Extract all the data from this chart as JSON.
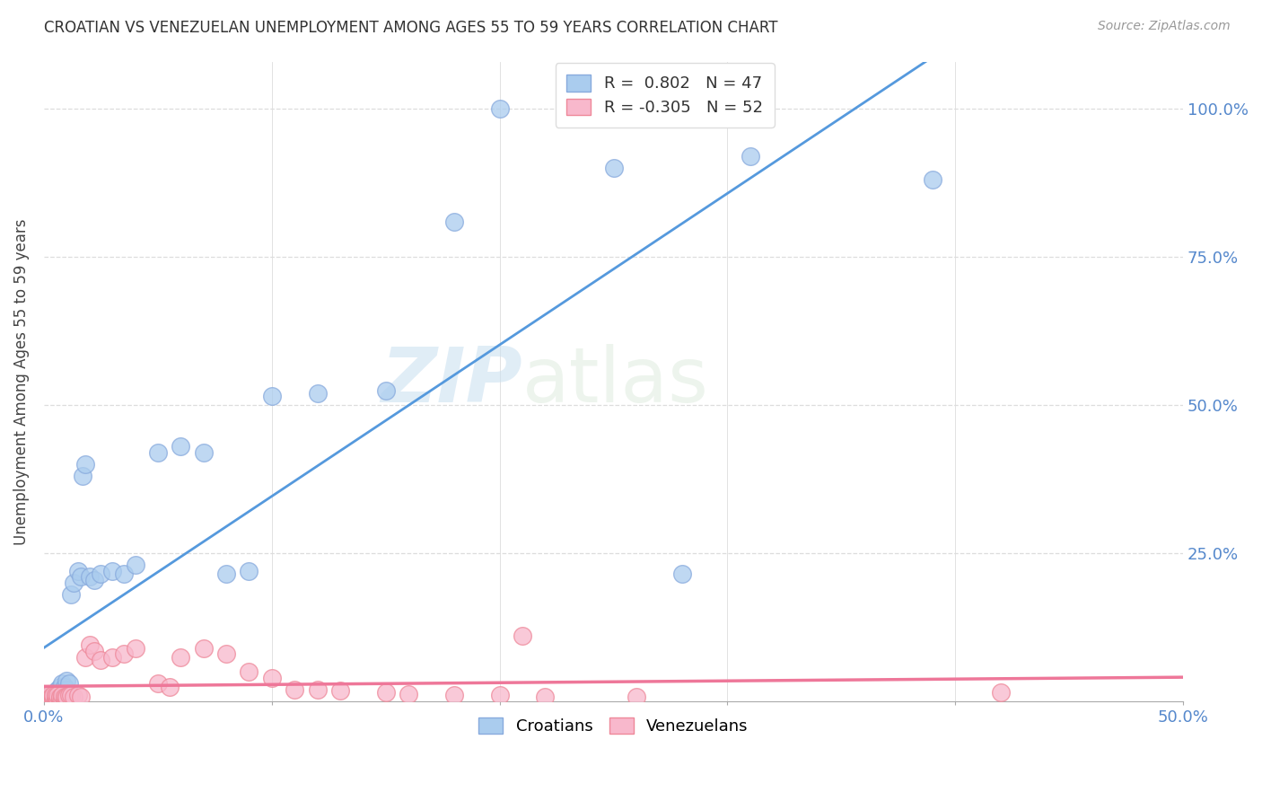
{
  "title": "CROATIAN VS VENEZUELAN UNEMPLOYMENT AMONG AGES 55 TO 59 YEARS CORRELATION CHART",
  "source": "Source: ZipAtlas.com",
  "ylabel": "Unemployment Among Ages 55 to 59 years",
  "xlim": [
    0.0,
    0.5
  ],
  "ylim": [
    0.0,
    1.08
  ],
  "croatian_color": "#aaccee",
  "venezuelan_color": "#f8b8cc",
  "croatian_edge_color": "#88aadd",
  "venezuelan_edge_color": "#ee8899",
  "croatian_line_color": "#5599dd",
  "venezuelan_line_color": "#ee7799",
  "legend_R_croatian": "0.802",
  "legend_N_croatian": "47",
  "legend_R_venezuelan": "-0.305",
  "legend_N_venezuelan": "52",
  "watermark_zip": "ZIP",
  "watermark_atlas": "atlas",
  "croatian_x": [
    0.001,
    0.002,
    0.002,
    0.003,
    0.003,
    0.004,
    0.004,
    0.005,
    0.005,
    0.005,
    0.006,
    0.006,
    0.007,
    0.007,
    0.008,
    0.008,
    0.008,
    0.009,
    0.01,
    0.01,
    0.011,
    0.012,
    0.013,
    0.015,
    0.016,
    0.017,
    0.018,
    0.02,
    0.022,
    0.025,
    0.03,
    0.035,
    0.04,
    0.05,
    0.06,
    0.07,
    0.08,
    0.09,
    0.1,
    0.12,
    0.15,
    0.18,
    0.2,
    0.25,
    0.28,
    0.31,
    0.39
  ],
  "croatian_y": [
    0.005,
    0.005,
    0.008,
    0.005,
    0.01,
    0.005,
    0.01,
    0.005,
    0.008,
    0.015,
    0.01,
    0.02,
    0.015,
    0.025,
    0.018,
    0.02,
    0.03,
    0.025,
    0.02,
    0.035,
    0.03,
    0.18,
    0.2,
    0.22,
    0.21,
    0.38,
    0.4,
    0.21,
    0.205,
    0.215,
    0.22,
    0.215,
    0.23,
    0.42,
    0.43,
    0.42,
    0.215,
    0.22,
    0.515,
    0.52,
    0.525,
    0.81,
    1.0,
    0.9,
    0.215,
    0.92,
    0.88
  ],
  "venezuelan_x": [
    0.001,
    0.001,
    0.002,
    0.002,
    0.003,
    0.003,
    0.004,
    0.004,
    0.004,
    0.005,
    0.005,
    0.005,
    0.006,
    0.006,
    0.007,
    0.007,
    0.008,
    0.008,
    0.009,
    0.009,
    0.01,
    0.01,
    0.011,
    0.012,
    0.013,
    0.015,
    0.016,
    0.018,
    0.02,
    0.022,
    0.025,
    0.03,
    0.035,
    0.04,
    0.05,
    0.055,
    0.06,
    0.07,
    0.08,
    0.09,
    0.1,
    0.11,
    0.12,
    0.13,
    0.15,
    0.16,
    0.18,
    0.2,
    0.21,
    0.22,
    0.26,
    0.42
  ],
  "venezuelan_y": [
    0.005,
    0.008,
    0.005,
    0.01,
    0.005,
    0.008,
    0.005,
    0.008,
    0.01,
    0.005,
    0.008,
    0.01,
    0.005,
    0.01,
    0.005,
    0.008,
    0.005,
    0.01,
    0.005,
    0.008,
    0.005,
    0.008,
    0.01,
    0.01,
    0.008,
    0.01,
    0.008,
    0.075,
    0.095,
    0.085,
    0.07,
    0.075,
    0.08,
    0.09,
    0.03,
    0.025,
    0.075,
    0.09,
    0.08,
    0.05,
    0.04,
    0.02,
    0.02,
    0.018,
    0.015,
    0.012,
    0.01,
    0.01,
    0.11,
    0.008,
    0.008,
    0.015
  ]
}
